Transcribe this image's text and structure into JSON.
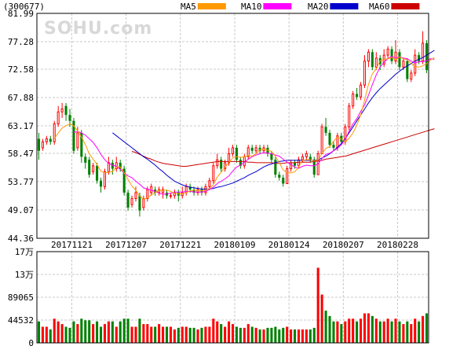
{
  "stock_code": "(300677)",
  "watermark": "SOHU.com",
  "colors": {
    "up": "#ff0000",
    "down": "#008000",
    "ma5": "#ff9900",
    "ma10": "#ff00ff",
    "ma20": "#0000cc",
    "ma60": "#cc0000",
    "grid": "#c8c8c8"
  },
  "legend": [
    {
      "label": "MA5",
      "color": "#ff9900"
    },
    {
      "label": "MA10",
      "color": "#ff00ff"
    },
    {
      "label": "MA20",
      "color": "#0000cc"
    },
    {
      "label": "MA60",
      "color": "#cc0000"
    }
  ],
  "price_ticks": [
    "81.99",
    "77.28",
    "72.58",
    "67.88",
    "63.17",
    "58.47",
    "53.77",
    "49.07",
    "44.36"
  ],
  "volume_ticks": [
    "17万",
    "13万",
    "89065",
    "44532",
    "0"
  ],
  "date_ticks": [
    "20171121",
    "20171207",
    "20171221",
    "20180109",
    "20180124",
    "20180207",
    "20180228"
  ],
  "chart_data": {
    "type": "candlestick",
    "price_range": [
      44.36,
      81.99
    ],
    "volume_range": [
      0,
      170000
    ],
    "grid": true,
    "date_tick_positions": [
      9,
      23,
      37,
      51,
      65,
      79,
      93
    ],
    "candles": [
      [
        61.0,
        59.0,
        62.0,
        57.5,
        40000
      ],
      [
        59.5,
        60.5,
        61.0,
        59.0,
        30000
      ],
      [
        60.5,
        61.0,
        61.5,
        60.0,
        30000
      ],
      [
        61.0,
        60.5,
        61.5,
        60.0,
        25000
      ],
      [
        60.5,
        63.5,
        64.0,
        60.0,
        45000
      ],
      [
        63.5,
        65.5,
        66.5,
        63.0,
        40000
      ],
      [
        65.5,
        66.0,
        67.0,
        64.5,
        35000
      ],
      [
        66.5,
        65.0,
        67.0,
        64.0,
        30000
      ],
      [
        65.0,
        64.0,
        66.0,
        63.0,
        28000
      ],
      [
        64.0,
        59.0,
        64.5,
        58.5,
        40000
      ],
      [
        59.5,
        62.0,
        63.0,
        59.0,
        35000
      ],
      [
        62.0,
        58.0,
        62.5,
        57.0,
        45000
      ],
      [
        58.0,
        57.0,
        58.5,
        56.0,
        42000
      ],
      [
        57.5,
        55.0,
        58.0,
        54.5,
        42000
      ],
      [
        55.5,
        56.5,
        57.0,
        55.0,
        35000
      ],
      [
        56.5,
        54.0,
        57.0,
        53.5,
        40000
      ],
      [
        54.0,
        53.0,
        54.5,
        52.0,
        30000
      ],
      [
        53.0,
        55.5,
        56.0,
        52.5,
        35000
      ],
      [
        55.5,
        57.0,
        58.0,
        55.0,
        40000
      ],
      [
        57.0,
        56.0,
        57.5,
        55.0,
        40000
      ],
      [
        56.0,
        57.0,
        58.0,
        55.5,
        30000
      ],
      [
        57.0,
        56.0,
        57.5,
        55.5,
        40000
      ],
      [
        56.0,
        52.0,
        56.5,
        51.5,
        45000
      ],
      [
        52.0,
        49.5,
        52.5,
        49.0,
        45000
      ],
      [
        50.0,
        51.0,
        51.5,
        49.5,
        30000
      ],
      [
        51.0,
        52.0,
        53.0,
        50.5,
        30000
      ],
      [
        51.5,
        49.0,
        52.0,
        48.0,
        45000
      ],
      [
        49.5,
        51.0,
        51.5,
        49.0,
        35000
      ],
      [
        51.0,
        52.5,
        53.0,
        50.5,
        35000
      ],
      [
        52.0,
        53.0,
        53.5,
        51.5,
        30000
      ],
      [
        52.5,
        52.0,
        53.0,
        51.5,
        30000
      ],
      [
        52.0,
        52.5,
        53.0,
        51.5,
        35000
      ],
      [
        52.0,
        52.5,
        53.0,
        51.0,
        30000
      ],
      [
        52.0,
        51.5,
        52.5,
        51.0,
        30000
      ],
      [
        51.5,
        51.5,
        52.0,
        51.0,
        30000
      ],
      [
        51.5,
        52.0,
        52.5,
        51.0,
        25000
      ],
      [
        52.0,
        51.5,
        52.5,
        50.5,
        28000
      ],
      [
        51.5,
        52.0,
        53.0,
        51.0,
        30000
      ],
      [
        52.0,
        53.0,
        53.5,
        51.5,
        30000
      ],
      [
        53.0,
        52.5,
        53.5,
        52.0,
        28000
      ],
      [
        52.5,
        52.0,
        53.0,
        51.5,
        28000
      ],
      [
        52.0,
        52.5,
        53.0,
        51.5,
        25000
      ],
      [
        52.5,
        52.0,
        53.0,
        51.5,
        28000
      ],
      [
        52.0,
        53.0,
        53.5,
        51.5,
        30000
      ],
      [
        53.0,
        54.0,
        54.5,
        52.5,
        30000
      ],
      [
        54.0,
        56.5,
        57.0,
        53.5,
        45000
      ],
      [
        56.5,
        57.5,
        58.5,
        56.0,
        40000
      ],
      [
        57.5,
        56.0,
        58.0,
        55.5,
        35000
      ],
      [
        56.0,
        57.0,
        57.5,
        55.5,
        30000
      ],
      [
        57.0,
        58.5,
        59.5,
        56.5,
        40000
      ],
      [
        58.5,
        59.5,
        60.0,
        58.0,
        35000
      ],
      [
        59.5,
        57.5,
        60.0,
        57.0,
        30000
      ],
      [
        57.5,
        56.5,
        58.0,
        56.0,
        28000
      ],
      [
        56.5,
        58.0,
        58.5,
        56.0,
        28000
      ],
      [
        58.0,
        59.5,
        60.0,
        57.5,
        35000
      ],
      [
        59.5,
        59.0,
        60.0,
        58.5,
        30000
      ],
      [
        59.0,
        59.5,
        60.0,
        58.5,
        28000
      ],
      [
        59.5,
        59.0,
        60.0,
        58.5,
        25000
      ],
      [
        59.0,
        59.5,
        60.0,
        58.5,
        25000
      ],
      [
        59.5,
        58.5,
        60.0,
        58.0,
        28000
      ],
      [
        58.5,
        57.5,
        59.0,
        57.0,
        28000
      ],
      [
        57.5,
        55.0,
        58.0,
        54.5,
        30000
      ],
      [
        55.0,
        54.5,
        55.5,
        54.0,
        25000
      ],
      [
        54.5,
        53.5,
        55.0,
        53.0,
        28000
      ],
      [
        53.5,
        56.0,
        56.5,
        53.5,
        30000
      ],
      [
        56.0,
        57.0,
        57.5,
        55.5,
        25000
      ],
      [
        57.0,
        56.5,
        57.5,
        56.0,
        25000
      ],
      [
        56.5,
        57.5,
        58.0,
        56.0,
        25000
      ],
      [
        57.5,
        58.0,
        58.5,
        57.0,
        25000
      ],
      [
        58.0,
        58.5,
        59.0,
        57.5,
        25000
      ],
      [
        58.0,
        57.5,
        58.5,
        57.0,
        25000
      ],
      [
        57.5,
        55.0,
        58.0,
        54.5,
        28000
      ],
      [
        55.0,
        58.5,
        59.0,
        55.0,
        140000
      ],
      [
        58.5,
        63.0,
        63.5,
        58.5,
        90000
      ],
      [
        63.0,
        62.0,
        64.5,
        61.5,
        60000
      ],
      [
        62.0,
        60.0,
        62.5,
        59.5,
        50000
      ],
      [
        60.0,
        59.5,
        60.5,
        59.0,
        40000
      ],
      [
        59.5,
        61.5,
        62.0,
        59.0,
        40000
      ],
      [
        61.5,
        60.5,
        62.0,
        60.0,
        35000
      ],
      [
        60.5,
        63.0,
        63.5,
        60.0,
        40000
      ],
      [
        63.0,
        66.5,
        67.0,
        62.5,
        45000
      ],
      [
        66.5,
        68.5,
        69.0,
        66.0,
        45000
      ],
      [
        68.5,
        68.0,
        69.5,
        67.5,
        40000
      ],
      [
        68.0,
        70.0,
        70.5,
        67.5,
        45000
      ],
      [
        70.0,
        74.0,
        75.0,
        69.5,
        55000
      ],
      [
        74.0,
        75.5,
        76.0,
        73.0,
        55000
      ],
      [
        75.5,
        73.0,
        76.0,
        72.5,
        50000
      ],
      [
        73.0,
        74.5,
        75.5,
        72.5,
        45000
      ],
      [
        74.5,
        73.5,
        75.0,
        72.5,
        40000
      ],
      [
        73.5,
        75.0,
        76.0,
        73.0,
        40000
      ],
      [
        75.0,
        76.0,
        76.5,
        74.5,
        45000
      ],
      [
        76.0,
        74.0,
        76.5,
        73.5,
        40000
      ],
      [
        74.0,
        75.5,
        77.5,
        73.5,
        45000
      ],
      [
        75.5,
        73.0,
        76.0,
        72.5,
        40000
      ],
      [
        73.0,
        74.0,
        74.5,
        72.5,
        35000
      ],
      [
        74.0,
        71.0,
        74.5,
        70.5,
        40000
      ],
      [
        71.0,
        72.0,
        72.5,
        70.5,
        35000
      ],
      [
        72.0,
        75.0,
        76.0,
        71.5,
        45000
      ],
      [
        75.0,
        74.0,
        75.5,
        73.5,
        40000
      ],
      [
        74.0,
        77.0,
        79.0,
        73.5,
        50000
      ],
      [
        77.0,
        72.5,
        77.5,
        72.0,
        55000
      ]
    ],
    "ma5": [
      null,
      null,
      null,
      null,
      61.0,
      62.0,
      62.8,
      63.2,
      63.5,
      63.2,
      62.3,
      61.3,
      60.0,
      58.5,
      57.6,
      56.7,
      55.6,
      55.3,
      55.4,
      55.5,
      56.3,
      56.3,
      55.3,
      54.2,
      53.1,
      52.4,
      51.4,
      50.9,
      51.1,
      51.6,
      52.0,
      52.4,
      52.4,
      52.4,
      52.2,
      51.9,
      51.8,
      51.8,
      52.0,
      52.3,
      52.4,
      52.4,
      52.3,
      52.4,
      52.7,
      53.3,
      54.6,
      55.4,
      56.2,
      57.1,
      57.8,
      58.0,
      57.9,
      58.0,
      58.2,
      58.1,
      58.5,
      59.2,
      59.3,
      59.1,
      58.9,
      58.1,
      57.0,
      55.8,
      55.3,
      55.3,
      55.5,
      56.3,
      57.4,
      57.5,
      57.5,
      57.3,
      57.5,
      58.5,
      59.4,
      59.7,
      60.6,
      61.3,
      61.0,
      60.5,
      61.1,
      62.0,
      63.3,
      65.0,
      67.5,
      70.1,
      71.9,
      72.7,
      74.1,
      74.3,
      74.4,
      74.6,
      74.2,
      74.7,
      74.4,
      74.2,
      73.6,
      73.1,
      73.0,
      73.2,
      73.6,
      74.2,
      74.6
    ],
    "ma10": [
      null,
      null,
      null,
      null,
      null,
      null,
      null,
      null,
      null,
      62.1,
      62.2,
      62.0,
      61.6,
      61.0,
      60.4,
      59.5,
      58.4,
      57.5,
      56.9,
      56.6,
      56.4,
      55.9,
      55.3,
      54.8,
      54.5,
      53.9,
      53.4,
      52.8,
      52.6,
      52.4,
      52.2,
      51.9,
      51.7,
      51.8,
      51.9,
      52.1,
      52.1,
      52.1,
      52.2,
      52.2,
      52.1,
      52.1,
      52.1,
      52.2,
      52.5,
      52.9,
      53.5,
      53.9,
      54.3,
      54.8,
      55.6,
      56.3,
      56.6,
      57.1,
      57.6,
      58.0,
      58.3,
      58.5,
      58.7,
      58.6,
      58.5,
      58.3,
      58.1,
      57.6,
      57.1,
      56.7,
      56.3,
      56.1,
      56.4,
      56.6,
      56.5,
      56.5,
      56.8,
      57.7,
      58.4,
      58.6,
      59.0,
      59.4,
      60.0,
      60.9,
      62.3,
      63.5,
      64.4,
      65.6,
      66.7,
      68.3,
      70.1,
      71.7,
      73.0,
      73.8,
      74.4,
      74.8,
      74.5,
      74.7,
      74.5,
      74.4,
      74.0,
      73.7,
      73.9,
      73.9,
      74.1,
      74.4,
      74.3
    ],
    "ma20": [
      null,
      null,
      null,
      null,
      null,
      null,
      null,
      null,
      null,
      null,
      null,
      null,
      null,
      null,
      null,
      null,
      null,
      null,
      null,
      62.0,
      61.5,
      61.0,
      60.5,
      60.0,
      59.5,
      59.0,
      58.5,
      58.0,
      57.6,
      57.1,
      56.6,
      56.0,
      55.5,
      54.9,
      54.4,
      53.9,
      53.6,
      53.3,
      53.1,
      52.9,
      52.8,
      52.7,
      52.6,
      52.6,
      52.6,
      52.7,
      52.9,
      53.0,
      53.2,
      53.4,
      53.6,
      53.9,
      54.2,
      54.5,
      54.9,
      55.2,
      55.5,
      55.9,
      56.3,
      56.6,
      56.8,
      57.0,
      57.2,
      57.3,
      57.4,
      57.4,
      57.4,
      57.4,
      57.4,
      57.4,
      57.4,
      57.4,
      57.5,
      57.8,
      58.1,
      58.5,
      59.0,
      59.6,
      60.2,
      61.0,
      62.0,
      63.0,
      64.0,
      65.0,
      66.0,
      67.0,
      67.9,
      68.7,
      69.4,
      70.0,
      70.6,
      71.2,
      71.8,
      72.3,
      72.8,
      73.2,
      73.6,
      74.0,
      74.3,
      74.6,
      75.0,
      75.4,
      75.8
    ],
    "ma60": [
      null,
      null,
      null,
      null,
      null,
      null,
      null,
      null,
      null,
      null,
      null,
      null,
      null,
      null,
      null,
      null,
      null,
      null,
      null,
      null,
      null,
      null,
      null,
      null,
      58.9,
      58.7,
      58.4,
      58.1,
      57.8,
      57.6,
      57.3,
      57.1,
      56.9,
      56.8,
      56.7,
      56.6,
      56.5,
      56.4,
      56.4,
      56.5,
      56.6,
      56.7,
      56.8,
      56.9,
      57.0,
      57.1,
      57.2,
      57.2,
      57.2,
      57.2,
      57.2,
      57.2,
      57.2,
      57.2,
      57.1,
      57.1,
      57.0,
      57.0,
      57.0,
      57.0,
      57.0,
      56.9,
      56.9,
      56.9,
      57.0,
      57.0,
      57.0,
      57.1,
      57.1,
      57.1,
      57.1,
      57.2,
      57.3,
      57.4,
      57.6,
      57.7,
      57.8,
      57.9,
      58.0,
      58.1,
      58.3,
      58.5,
      58.7,
      58.9,
      59.1,
      59.3,
      59.5,
      59.7,
      59.9,
      60.1,
      60.3,
      60.5,
      60.7,
      60.9,
      61.1,
      61.3,
      61.5,
      61.7,
      61.9,
      62.1,
      62.3,
      62.5,
      62.7
    ]
  }
}
